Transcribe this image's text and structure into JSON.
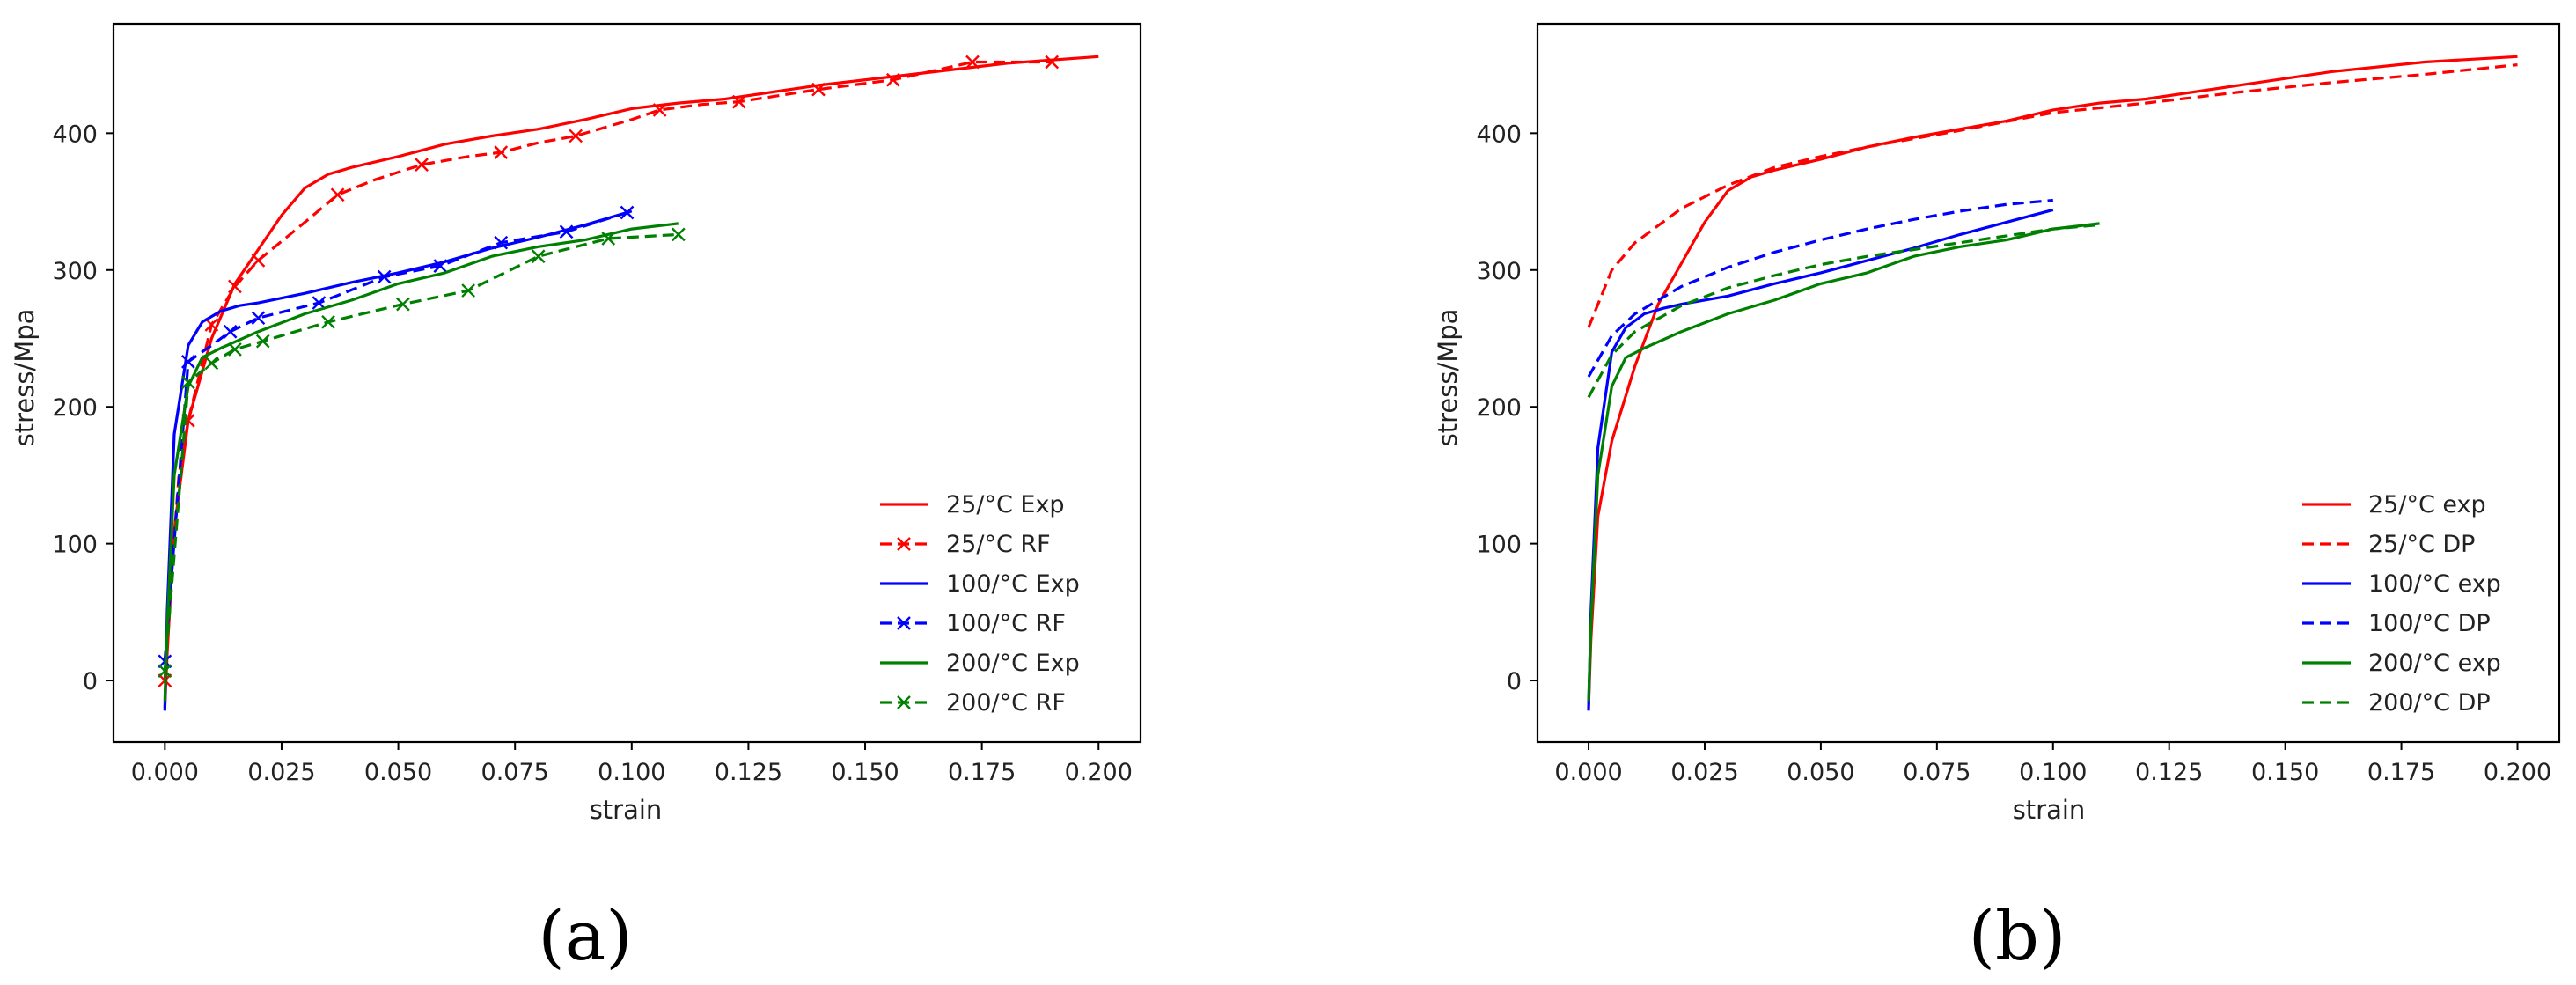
{
  "chart_data": [
    {
      "type": "line",
      "panel_label": "(a)",
      "xlabel": "strain",
      "ylabel": "stress/Mpa",
      "xlim": [
        -0.011,
        0.209
      ],
      "ylim": [
        -45,
        480
      ],
      "xticks": [
        "0.000",
        "0.025",
        "0.050",
        "0.075",
        "0.100",
        "0.125",
        "0.150",
        "0.175",
        "0.200"
      ],
      "yticks": [
        "0",
        "100",
        "200",
        "300",
        "400"
      ],
      "legend_position": "lower right",
      "series": [
        {
          "name": "25/°C Exp",
          "color": "#ff0000",
          "style": "solid",
          "marker": "none",
          "x": [
            0,
            0.0005,
            0.002,
            0.005,
            0.01,
            0.015,
            0.02,
            0.025,
            0.03,
            0.035,
            0.04,
            0.05,
            0.06,
            0.07,
            0.08,
            0.09,
            0.1,
            0.11,
            0.12,
            0.14,
            0.16,
            0.18,
            0.2
          ],
          "y": [
            -20,
            20,
            110,
            190,
            250,
            290,
            315,
            340,
            360,
            370,
            375,
            383,
            392,
            398,
            403,
            410,
            418,
            422,
            425,
            435,
            443,
            451,
            456
          ]
        },
        {
          "name": "25/°C RF",
          "color": "#ff0000",
          "style": "dashed",
          "marker": "x",
          "x": [
            0,
            0.001,
            0.003,
            0.005,
            0.01,
            0.015,
            0.02,
            0.03,
            0.037,
            0.045,
            0.055,
            0.065,
            0.072,
            0.08,
            0.088,
            0.1,
            0.106,
            0.115,
            0.123,
            0.14,
            0.156,
            0.173,
            0.19
          ],
          "y": [
            0,
            60,
            150,
            190,
            260,
            288,
            307,
            335,
            355,
            366,
            377,
            383,
            386,
            393,
            398,
            410,
            417,
            421,
            423,
            432,
            439,
            452,
            452
          ],
          "markers_x": [
            0.0,
            0.005,
            0.01,
            0.015,
            0.02,
            0.037,
            0.055,
            0.072,
            0.088,
            0.106,
            0.123,
            0.14,
            0.156,
            0.173,
            0.19
          ],
          "markers_y": [
            0,
            190,
            260,
            288,
            307,
            355,
            377,
            386,
            398,
            417,
            423,
            432,
            439,
            452,
            452
          ]
        },
        {
          "name": "100/°C Exp",
          "color": "#0000ff",
          "style": "solid",
          "marker": "none",
          "x": [
            0,
            0.0005,
            0.002,
            0.005,
            0.008,
            0.012,
            0.016,
            0.02,
            0.03,
            0.04,
            0.05,
            0.06,
            0.07,
            0.08,
            0.09,
            0.1
          ],
          "y": [
            -22,
            50,
            180,
            245,
            262,
            270,
            274,
            276,
            283,
            291,
            298,
            306,
            316,
            324,
            333,
            343
          ]
        },
        {
          "name": "100/°C RF",
          "color": "#0000ff",
          "style": "dashed",
          "marker": "x",
          "x": [
            0,
            0.005,
            0.01,
            0.014,
            0.02,
            0.033,
            0.047,
            0.059,
            0.072,
            0.086,
            0.099
          ],
          "y": [
            14,
            233,
            245,
            255,
            265,
            276,
            295,
            303,
            320,
            328,
            342
          ],
          "markers_x": [
            0,
            0.005,
            0.014,
            0.02,
            0.033,
            0.047,
            0.059,
            0.072,
            0.086,
            0.099
          ],
          "markers_y": [
            14,
            233,
            255,
            265,
            276,
            295,
            303,
            320,
            328,
            342
          ]
        },
        {
          "name": "200/°C Exp",
          "color": "#008000",
          "style": "solid",
          "marker": "none",
          "x": [
            0,
            0.0005,
            0.002,
            0.005,
            0.008,
            0.012,
            0.02,
            0.03,
            0.04,
            0.05,
            0.06,
            0.07,
            0.08,
            0.09,
            0.1,
            0.11
          ],
          "y": [
            -15,
            40,
            150,
            215,
            236,
            243,
            255,
            268,
            278,
            290,
            298,
            310,
            317,
            322,
            330,
            334
          ]
        },
        {
          "name": "200/°C RF",
          "color": "#008000",
          "style": "dashed",
          "marker": "x",
          "x": [
            0,
            0.005,
            0.01,
            0.015,
            0.021,
            0.035,
            0.051,
            0.065,
            0.08,
            0.095,
            0.11
          ],
          "y": [
            7,
            218,
            232,
            242,
            248,
            262,
            275,
            285,
            310,
            323,
            326
          ],
          "markers_x": [
            0,
            0.005,
            0.01,
            0.015,
            0.021,
            0.035,
            0.051,
            0.065,
            0.08,
            0.095,
            0.11
          ],
          "markers_y": [
            7,
            218,
            232,
            242,
            248,
            262,
            275,
            285,
            310,
            323,
            326
          ]
        }
      ]
    },
    {
      "type": "line",
      "panel_label": "(b)",
      "xlabel": "strain",
      "ylabel": "stress/Mpa",
      "xlim": [
        -0.011,
        0.209
      ],
      "ylim": [
        -45,
        480
      ],
      "xticks": [
        "0.000",
        "0.025",
        "0.050",
        "0.075",
        "0.100",
        "0.125",
        "0.150",
        "0.175",
        "0.200"
      ],
      "yticks": [
        "0",
        "100",
        "200",
        "300",
        "400"
      ],
      "legend_position": "lower right",
      "series": [
        {
          "name": "25/°C exp",
          "color": "#ff0000",
          "style": "solid",
          "marker": "none",
          "x": [
            0,
            0.0005,
            0.002,
            0.005,
            0.01,
            0.015,
            0.02,
            0.025,
            0.03,
            0.035,
            0.04,
            0.05,
            0.06,
            0.07,
            0.08,
            0.09,
            0.1,
            0.11,
            0.12,
            0.14,
            0.16,
            0.18,
            0.2
          ],
          "y": [
            -20,
            30,
            120,
            175,
            230,
            275,
            305,
            335,
            358,
            368,
            373,
            381,
            390,
            397,
            403,
            409,
            417,
            422,
            425,
            435,
            445,
            452,
            456
          ]
        },
        {
          "name": "25/°C DP",
          "color": "#ff0000",
          "style": "dashed",
          "marker": "none",
          "x": [
            0,
            0.005,
            0.01,
            0.02,
            0.03,
            0.04,
            0.05,
            0.06,
            0.08,
            0.1,
            0.12,
            0.14,
            0.16,
            0.18,
            0.2
          ],
          "y": [
            258,
            300,
            320,
            345,
            362,
            375,
            383,
            390,
            402,
            415,
            422,
            430,
            437,
            443,
            450
          ]
        },
        {
          "name": "100/°C exp",
          "color": "#0000ff",
          "style": "solid",
          "marker": "none",
          "x": [
            0,
            0.0005,
            0.002,
            0.005,
            0.008,
            0.012,
            0.016,
            0.02,
            0.03,
            0.04,
            0.05,
            0.06,
            0.07,
            0.08,
            0.09,
            0.1
          ],
          "y": [
            -22,
            50,
            170,
            240,
            258,
            268,
            272,
            275,
            281,
            290,
            298,
            307,
            316,
            326,
            335,
            344
          ]
        },
        {
          "name": "100/°C DP",
          "color": "#0000ff",
          "style": "dashed",
          "marker": "none",
          "x": [
            0,
            0.005,
            0.01,
            0.02,
            0.03,
            0.04,
            0.05,
            0.06,
            0.07,
            0.08,
            0.09,
            0.1
          ],
          "y": [
            222,
            252,
            268,
            288,
            302,
            313,
            322,
            330,
            337,
            343,
            348,
            351
          ]
        },
        {
          "name": "200/°C exp",
          "color": "#008000",
          "style": "solid",
          "marker": "none",
          "x": [
            0,
            0.0005,
            0.002,
            0.005,
            0.008,
            0.012,
            0.02,
            0.03,
            0.04,
            0.05,
            0.06,
            0.07,
            0.08,
            0.09,
            0.1,
            0.11
          ],
          "y": [
            -15,
            40,
            150,
            215,
            236,
            243,
            255,
            268,
            278,
            290,
            298,
            310,
            317,
            322,
            330,
            334
          ]
        },
        {
          "name": "200/°C DP",
          "color": "#008000",
          "style": "dashed",
          "marker": "none",
          "x": [
            0,
            0.005,
            0.01,
            0.02,
            0.03,
            0.04,
            0.05,
            0.06,
            0.07,
            0.08,
            0.09,
            0.1,
            0.11
          ],
          "y": [
            207,
            238,
            255,
            274,
            287,
            296,
            304,
            310,
            315,
            320,
            325,
            330,
            333
          ]
        }
      ]
    }
  ]
}
